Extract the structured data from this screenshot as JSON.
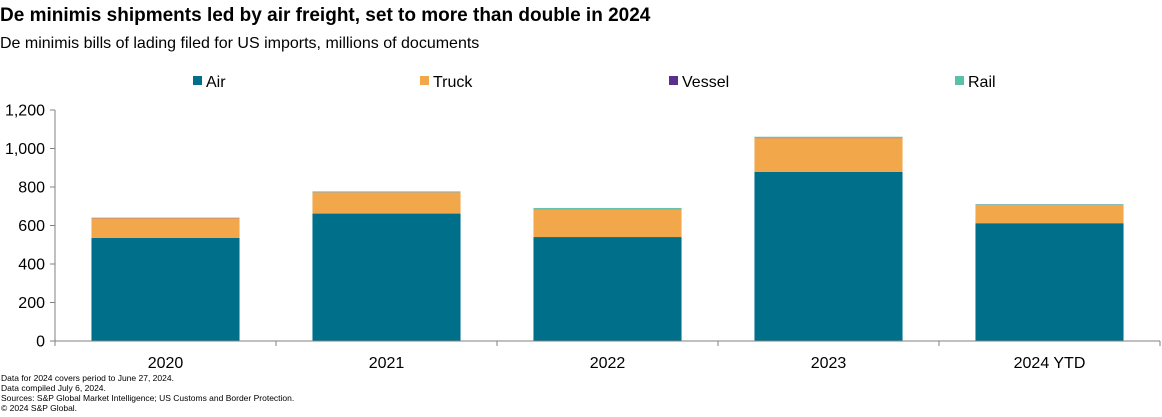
{
  "title": "De minimis shipments led by air freight, set to more than double in 2024",
  "subtitle": "De minimis bills of lading filed for US imports, millions of documents",
  "colors": {
    "Air": "#006f8a",
    "Truck": "#f2a74b",
    "Vessel": "#5c2e8e",
    "Rail": "#5cbfa8",
    "axis": "#808080"
  },
  "chart_data": {
    "type": "bar",
    "stacked": true,
    "categories": [
      "2020",
      "2021",
      "2022",
      "2023",
      "2024 YTD"
    ],
    "series": [
      {
        "name": "Air",
        "values": [
          535,
          662,
          540,
          878,
          612
        ]
      },
      {
        "name": "Truck",
        "values": [
          103,
          110,
          145,
          176,
          95
        ]
      },
      {
        "name": "Vessel",
        "values": [
          1,
          1,
          1,
          1,
          1
        ]
      },
      {
        "name": "Rail",
        "values": [
          2,
          4,
          5,
          6,
          3
        ]
      }
    ],
    "ylim": [
      0,
      1200
    ],
    "yticks": [
      "0",
      "200",
      "400",
      "600",
      "800",
      "1,000",
      "1,200"
    ],
    "ytick_values": [
      0,
      200,
      400,
      600,
      800,
      1000,
      1200
    ],
    "legend_position": "top",
    "grid": false
  },
  "notes": [
    "Data for 2024 covers period to June 27, 2024.",
    "Data compiled July 6, 2024.",
    "Sources: S&P Global Market Intelligence; US Customs and Border Protection.",
    "© 2024 S&P Global."
  ]
}
